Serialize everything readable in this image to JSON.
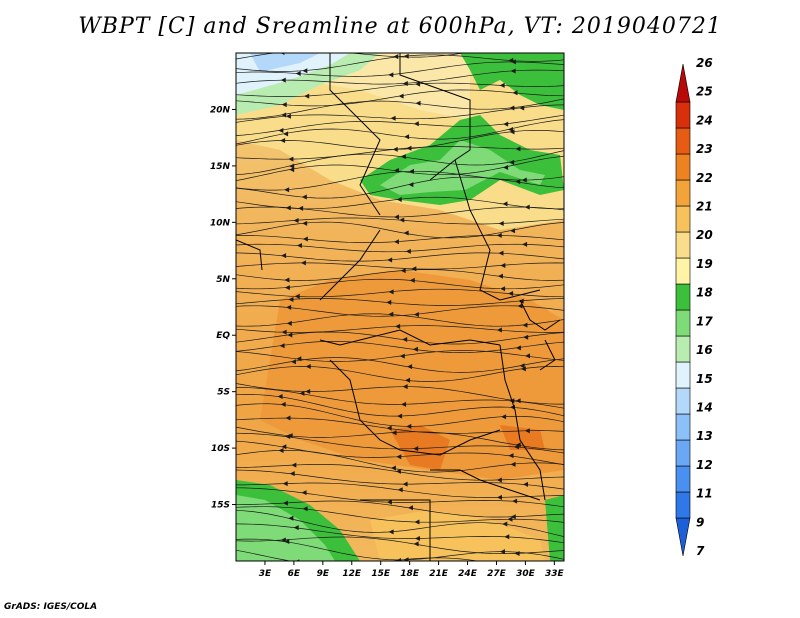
{
  "title": "WBPT [C] and Sreamline at 600hPa, VT: 2019040721",
  "footer": "GrADS: IGES/COLA",
  "map": {
    "lon_ticks": [
      "3E",
      "6E",
      "9E",
      "12E",
      "15E",
      "18E",
      "21E",
      "24E",
      "27E",
      "30E",
      "33E"
    ],
    "lat_ticks": [
      "20N",
      "15N",
      "10N",
      "5N",
      "EQ",
      "5S",
      "10S",
      "15S"
    ],
    "lon_range": [
      0,
      34
    ],
    "lat_range": [
      -20,
      25
    ]
  },
  "colorbar": {
    "labels": [
      "7",
      "9",
      "11",
      "12",
      "13",
      "14",
      "15",
      "16",
      "17",
      "18",
      "19",
      "20",
      "21",
      "22",
      "23",
      "24",
      "25",
      "26"
    ],
    "colors": [
      "#1d5fd6",
      "#2f78e8",
      "#4a90f0",
      "#6aa8f5",
      "#8cc0f8",
      "#b4d8fa",
      "#e0f2fc",
      "#b8ecb0",
      "#7edb77",
      "#3cc03c",
      "#fff3a6",
      "#f9dd8a",
      "#f7c25c",
      "#f2a43a",
      "#ed8320",
      "#e65c12",
      "#d8300a",
      "#b80808"
    ]
  }
}
